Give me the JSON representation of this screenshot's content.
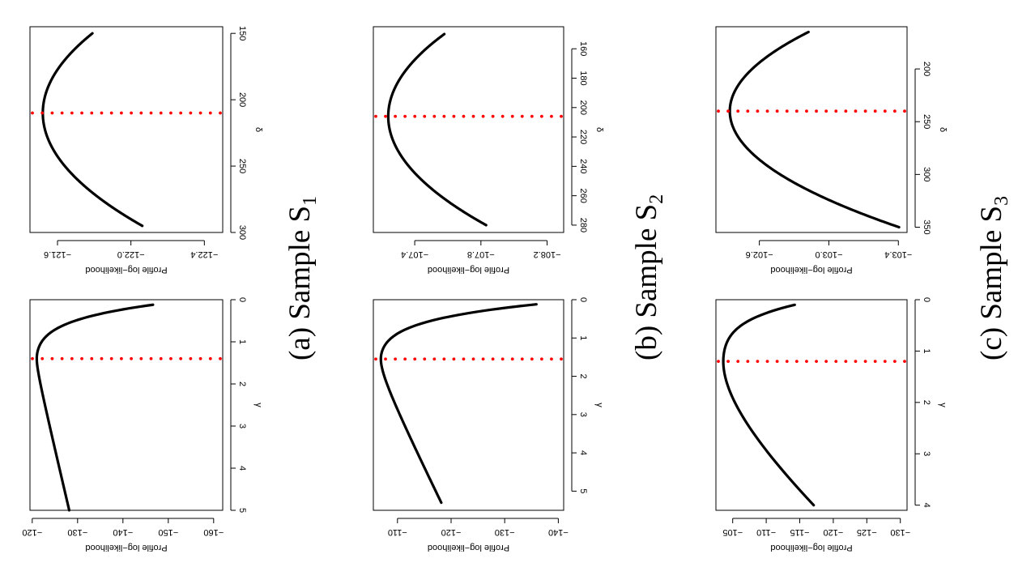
{
  "chart_data": [
    {
      "id": "a-gamma",
      "type": "line",
      "panel": "(a)",
      "xlabel": "γ",
      "ylabel": "Profile log−likelihood",
      "xlim": [
        0,
        5
      ],
      "ylim": [
        -162,
        -119.5
      ],
      "xticks": [
        0,
        1,
        2,
        3,
        4,
        5
      ],
      "xtick_labels": [
        "0",
        "1",
        "2",
        "3",
        "4",
        "5"
      ],
      "yticks": [
        -120,
        -130,
        -140,
        -150,
        -160
      ],
      "ytick_labels": [
        "−120",
        "−130",
        "−140",
        "−150",
        "−160"
      ],
      "curve": {
        "min": 0.12,
        "max": 5.0,
        "x0": 1.4,
        "ymax": -121.0,
        "a": 6.0,
        "b": 2.74,
        "bL": 11.2
      },
      "mle": 1.4
    },
    {
      "id": "a-delta",
      "type": "line",
      "panel": "(a)",
      "xlabel": "δ",
      "ylabel": "Profile log−likelihood",
      "xlim": [
        145,
        300
      ],
      "ylim": [
        -122.5,
        -121.45
      ],
      "xticks": [
        150,
        200,
        250,
        300
      ],
      "xtick_labels": [
        "150",
        "200",
        "250",
        "300"
      ],
      "yticks": [
        -121.6,
        -122.0,
        -122.4
      ],
      "ytick_labels": [
        "−121.6",
        "−122.0",
        "−122.4"
      ],
      "curve": {
        "min": 150,
        "max": 295,
        "x0": 210,
        "ymax": -121.52,
        "a": 7.5e-05,
        "b": 0,
        "bL": 0
      },
      "mle": 210
    },
    {
      "id": "b-gamma",
      "type": "line",
      "panel": "(b)",
      "xlabel": "γ",
      "ylabel": "Profile log−likelihood",
      "xlim": [
        0,
        5.5
      ],
      "ylim": [
        -141,
        -105.5
      ],
      "xticks": [
        0,
        1,
        2,
        3,
        4,
        5
      ],
      "xtick_labels": [
        "0",
        "1",
        "2",
        "3",
        "4",
        "5"
      ],
      "yticks": [
        -110,
        -120,
        -130,
        -140
      ],
      "ytick_labels": [
        "−110",
        "−120",
        "−130",
        "−140"
      ],
      "curve": {
        "min": 0.12,
        "max": 5.3,
        "x0": 1.55,
        "ymax": -106.9,
        "a": 5.4,
        "b": 1.53,
        "bL": 8.0
      },
      "mle": 1.55
    },
    {
      "id": "b-delta",
      "type": "line",
      "panel": "(b)",
      "xlabel": "δ",
      "ylabel": "Profile log−likelihood",
      "xlim": [
        145,
        285
      ],
      "ylim": [
        -108.3,
        -107.15
      ],
      "xticks": [
        160,
        180,
        200,
        220,
        240,
        260,
        280
      ],
      "xtick_labels": [
        "160",
        "180",
        "200",
        "220",
        "240",
        "260",
        "280"
      ],
      "yticks": [
        -107.4,
        -107.8,
        -108.2
      ],
      "ytick_labels": [
        "−107.4",
        "−107.8",
        "−108.2"
      ],
      "curve": {
        "min": 150,
        "max": 280,
        "x0": 206,
        "ymax": -107.24,
        "a": 0.000108,
        "b": 0,
        "bL": 0
      },
      "mle": 206
    },
    {
      "id": "c-gamma",
      "type": "line",
      "panel": "(c)",
      "xlabel": "γ",
      "ylabel": "Profile log−likelihood",
      "xlim": [
        0,
        4.1
      ],
      "ylim": [
        -131,
        -102.5
      ],
      "xticks": [
        0,
        1,
        2,
        3,
        4
      ],
      "xtick_labels": [
        "0",
        "1",
        "2",
        "3",
        "4"
      ],
      "yticks": [
        -105,
        -110,
        -115,
        -120,
        -125,
        -130
      ],
      "ytick_labels": [
        "−105",
        "−110",
        "−115",
        "−120",
        "−125",
        "−130"
      ],
      "curve": {
        "min": 0.1,
        "max": 4.0,
        "x0": 1.2,
        "ymax": -103.6,
        "a": 3.5,
        "b": 0.37,
        "bL": 8.6
      },
      "mle": 1.2
    },
    {
      "id": "c-delta",
      "type": "line",
      "panel": "(c)",
      "xlabel": "δ",
      "ylabel": "Profile log−likelihood",
      "xlim": [
        160,
        355
      ],
      "ylim": [
        -103.45,
        -102.35
      ],
      "xticks": [
        200,
        250,
        300,
        350
      ],
      "xtick_labels": [
        "200",
        "250",
        "300",
        "350"
      ],
      "yticks": [
        -102.6,
        -103.0,
        -103.4
      ],
      "ytick_labels": [
        "−102.6",
        "−103.0",
        "−103.4"
      ],
      "curve": {
        "min": 165,
        "max": 350,
        "x0": 240,
        "ymax": -102.43,
        "a": 8.05e-05,
        "b": 0,
        "bL": 0
      },
      "mle": 240
    }
  ],
  "captions": [
    {
      "prefix": "(a) Sample S",
      "sub": "1"
    },
    {
      "prefix": "(b) Sample S",
      "sub": "2"
    },
    {
      "prefix": "(c) Sample S",
      "sub": "3"
    }
  ]
}
